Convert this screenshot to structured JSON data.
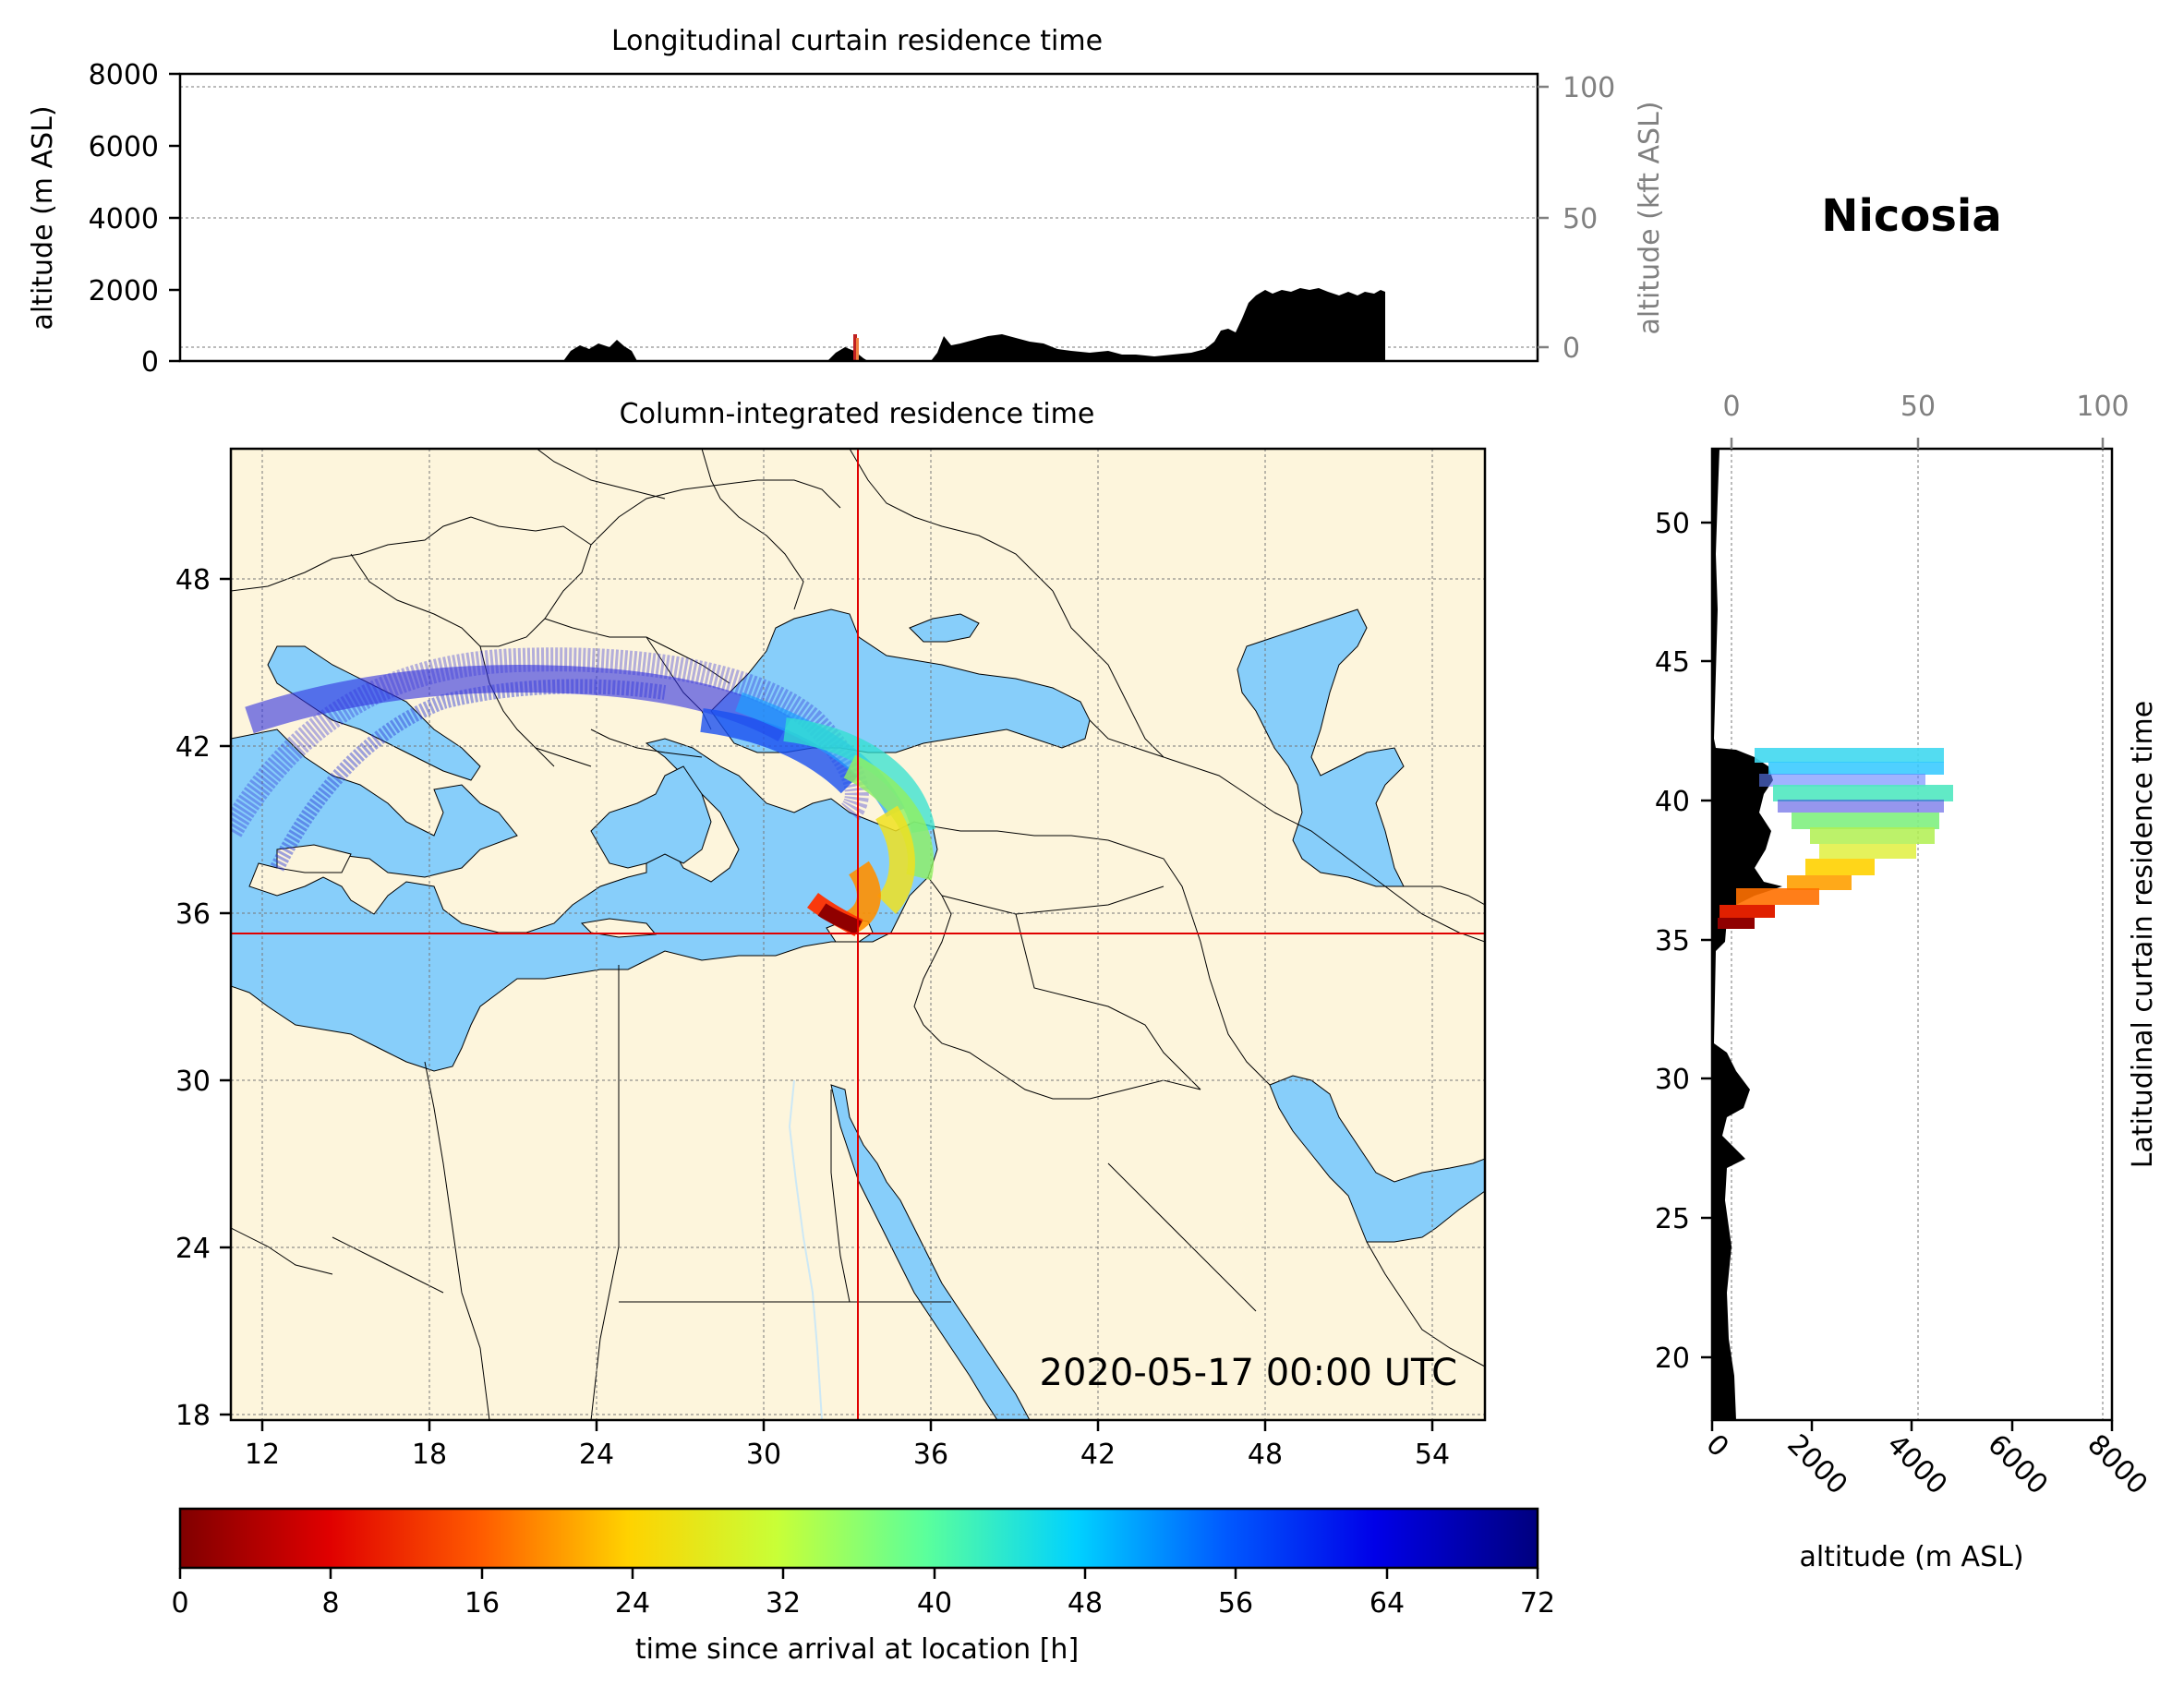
{
  "location": "Nicosia",
  "timestamp": "2020-05-17 00:00 UTC",
  "longitudinal_panel": {
    "title": "Longitudinal curtain residence time",
    "ylabel": "altitude (m ASL)",
    "ylabel_right": "altitude (kft ASL)",
    "yticks": [
      "0",
      "2000",
      "4000",
      "6000",
      "8000"
    ],
    "yticks_right": [
      "0",
      "50",
      "100"
    ]
  },
  "map_panel": {
    "title": "Column-integrated residence time",
    "xticks": [
      "12",
      "18",
      "24",
      "30",
      "36",
      "42",
      "48",
      "54"
    ],
    "yticks": [
      "18",
      "24",
      "30",
      "36",
      "42",
      "48"
    ],
    "release_point": {
      "lon": 33.4,
      "lat": 35.2
    },
    "extent": {
      "lon": [
        10.9,
        55.9
      ],
      "lat": [
        17.9,
        52.9
      ]
    },
    "colors": {
      "land": "#fdf5dc",
      "sea": "#87cefa",
      "crosshair": "#e00000"
    }
  },
  "latitudinal_panel": {
    "ylabel": "Latitudinal curtain residence time",
    "xlabel": "altitude (m ASL)",
    "xticks": [
      "0",
      "2000",
      "4000",
      "6000",
      "8000"
    ],
    "xticks_top": [
      "0",
      "50",
      "100"
    ],
    "yticks": [
      "20",
      "25",
      "30",
      "35",
      "40",
      "45",
      "50"
    ]
  },
  "colorbar": {
    "label": "time since arrival at location [h]",
    "ticks": [
      "0",
      "8",
      "16",
      "24",
      "32",
      "40",
      "48",
      "56",
      "64",
      "72"
    ],
    "colormap": "jet_r",
    "range": [
      0,
      72
    ]
  }
}
